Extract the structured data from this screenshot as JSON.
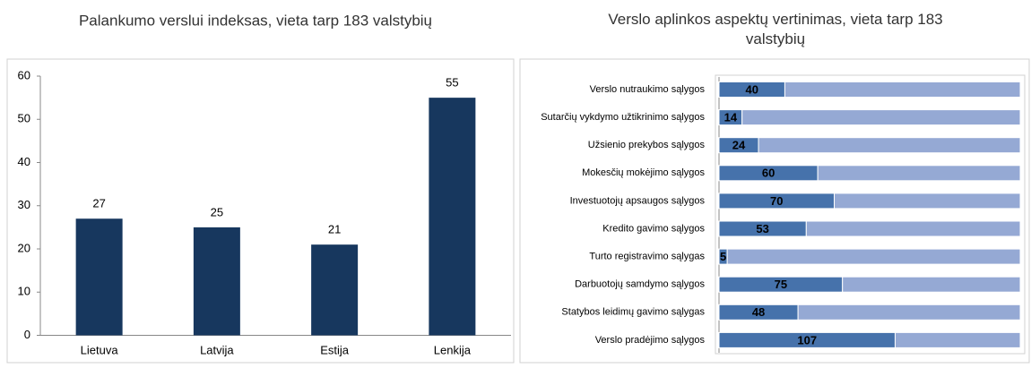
{
  "chart_data": [
    {
      "type": "bar",
      "title": "Palankumo verslui indeksas, vieta tarp 183 valstybių",
      "categories": [
        "Lietuva",
        "Latvija",
        "Estija",
        "Lenkija"
      ],
      "values": [
        27,
        25,
        21,
        55
      ],
      "color": "#17375e",
      "ylim": [
        0,
        60
      ],
      "yticks": [
        0,
        10,
        20,
        30,
        40,
        50,
        60
      ]
    },
    {
      "type": "stacked-barh",
      "title": "Verslo aplinkos aspektų vertinimas, vieta tarp 183 valstybių",
      "categories": [
        "Verslo nutraukimo sąlygos",
        "Sutarčių vykdymo užtikrinimo sąlygos",
        "Užsienio prekybos sąlygos",
        "Mokesčių mokėjimo sąlygos",
        "Investuotojų apsaugos sąlygos",
        "Kredito gavimo sąlygos",
        "Turto registravimo sąlygas",
        "Darbuotojų samdymo sąlygos",
        "Statybos leidimų gavimo sąlygas",
        "Verslo pradėjimo sąlygos"
      ],
      "series": [
        {
          "color": "#4672ab",
          "values": [
            40,
            14,
            24,
            60,
            70,
            53,
            5,
            75,
            48,
            107
          ]
        },
        {
          "color": "#95a9d4",
          "values": [
            143,
            169,
            159,
            123,
            113,
            130,
            178,
            108,
            135,
            76
          ]
        }
      ],
      "xlim": [
        0,
        183
      ]
    }
  ]
}
